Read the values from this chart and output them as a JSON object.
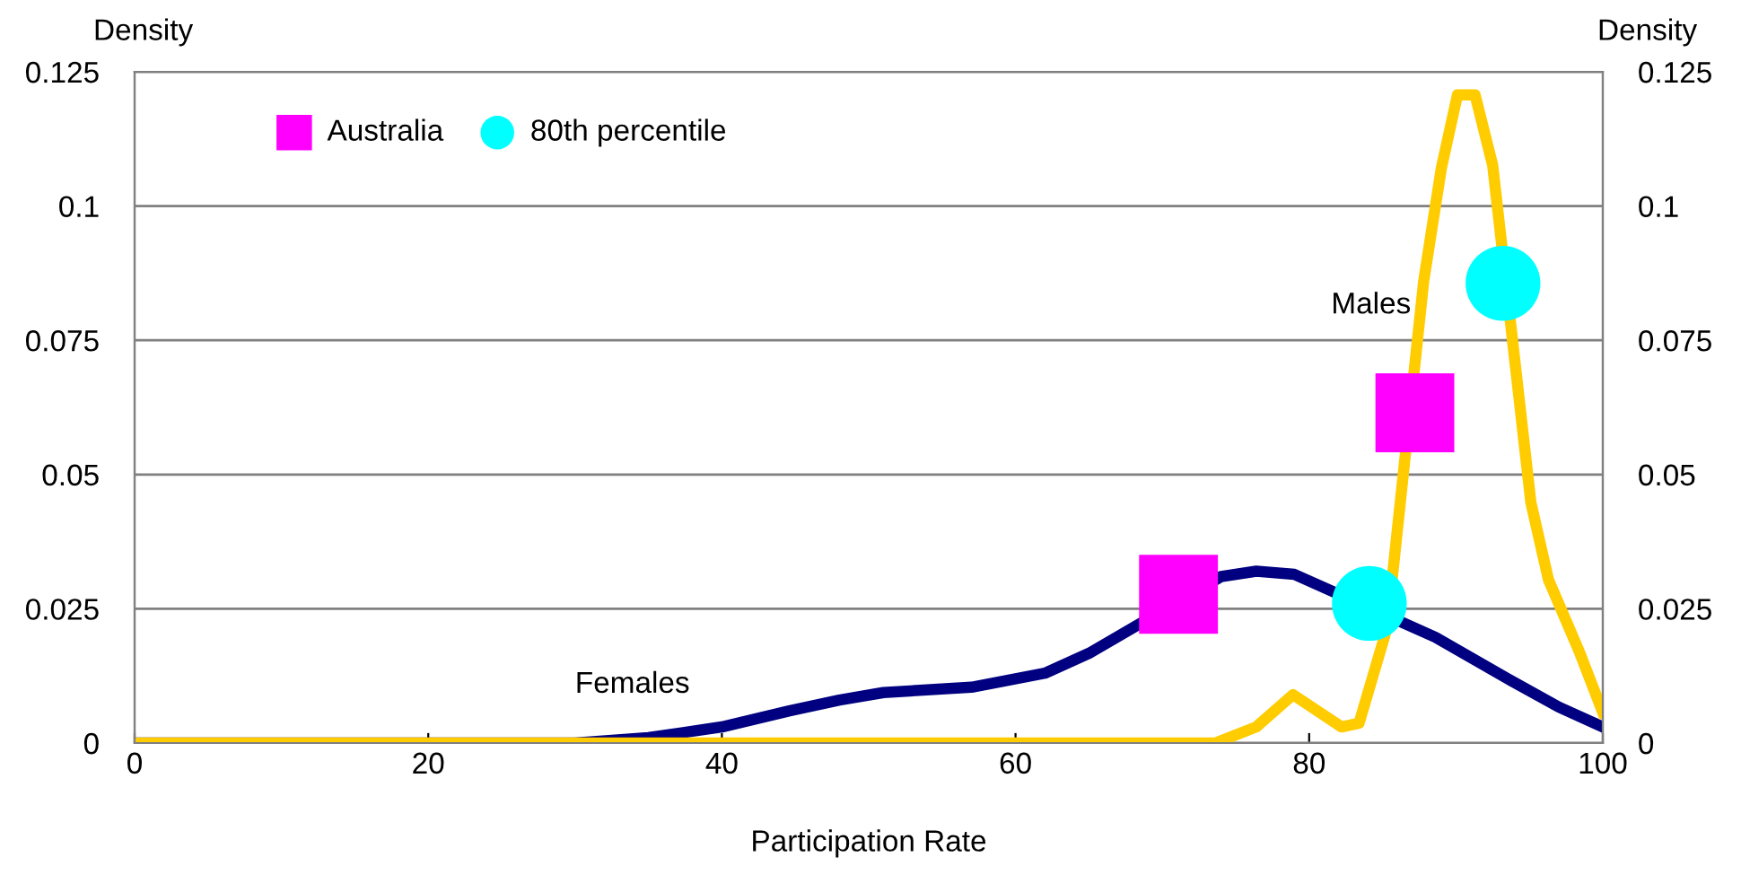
{
  "chart_data": {
    "type": "line",
    "xlabel": "Participation Rate",
    "ylabel": "Density",
    "y2label": "Density",
    "xlim": [
      0,
      100
    ],
    "xticks": [
      0,
      20,
      40,
      60,
      80,
      100
    ],
    "ylim": [
      0,
      0.125
    ],
    "yticks": [
      0,
      0.025,
      0.05,
      0.075,
      0.1,
      0.125
    ],
    "y2lim": [
      0,
      0.125
    ],
    "y2ticks": [
      0,
      0.025,
      0.05,
      0.075,
      0.1,
      0.125
    ],
    "grid": "y",
    "legend": "top left",
    "series": [
      {
        "name": "Females",
        "color": "#000080",
        "x": [
          0,
          30,
          35,
          40,
          44.6,
          48,
          51,
          57,
          62,
          65,
          74,
          76.4,
          79,
          88.6,
          93.5,
          97,
          100
        ],
        "values": [
          0,
          0,
          0.001,
          0.003,
          0.006,
          0.008,
          0.0094,
          0.0104,
          0.013,
          0.0167,
          0.031,
          0.032,
          0.0314,
          0.0197,
          0.012,
          0.0067,
          0.003
        ]
      },
      {
        "name": "Males",
        "color": "#ffcc00",
        "x": [
          0,
          73.6,
          76.4,
          78.9,
          82.2,
          83.4,
          85.3,
          87.8,
          89,
          90.1,
          91.3,
          92.5,
          95.1,
          96.3,
          98.4,
          100
        ],
        "values": [
          0,
          0,
          0.003,
          0.009,
          0.003,
          0.0037,
          0.0214,
          0.086,
          0.107,
          0.1207,
          0.1207,
          0.1076,
          0.0448,
          0.0304,
          0.017,
          0.0057
        ]
      },
      {
        "name": "Australia",
        "type": "scatter",
        "marker": "square",
        "color": "#ff00ff",
        "x": [
          71.1,
          87.2
        ],
        "values": [
          0.0277,
          0.0615
        ]
      },
      {
        "name": "80th percentile",
        "type": "scatter",
        "marker": "circle",
        "color": "#00ffff",
        "x": [
          84.1,
          93.2
        ],
        "values": [
          0.026,
          0.0856
        ]
      }
    ]
  }
}
